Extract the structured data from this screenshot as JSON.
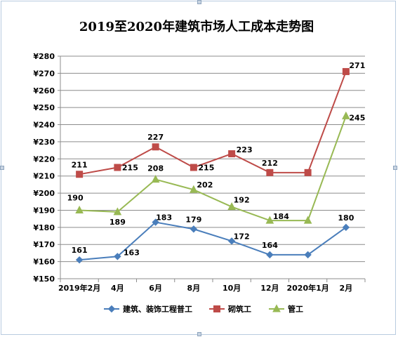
{
  "chart_data": {
    "type": "line",
    "title": "2019至2020年建筑市场人工成本走势图",
    "categories": [
      "2019年2月",
      "4月",
      "6月",
      "8月",
      "10月",
      "12月",
      "2020年1月",
      "2月"
    ],
    "yticks": [
      "¥150",
      "¥160",
      "¥170",
      "¥180",
      "¥190",
      "¥200",
      "¥210",
      "¥220",
      "¥230",
      "¥240",
      "¥250",
      "¥260",
      "¥270",
      "¥280"
    ],
    "ylim": [
      150,
      280
    ],
    "grid": true,
    "legend_position": "bottom",
    "series": [
      {
        "name": "建筑、装饰工程普工",
        "color": "#4a7ebb",
        "marker": "diamond",
        "values": [
          161,
          163,
          183,
          179,
          172,
          164,
          164,
          180
        ],
        "labels": [
          "161",
          "163",
          "183",
          "179",
          "172",
          "164",
          "",
          "180"
        ]
      },
      {
        "name": "砌筑工",
        "color": "#be4b48",
        "marker": "square",
        "values": [
          211,
          215,
          227,
          215,
          223,
          212,
          212,
          271
        ],
        "labels": [
          "211",
          "215",
          "227",
          "215",
          "223",
          "212",
          "",
          "271"
        ]
      },
      {
        "name": "管工",
        "color": "#98b954",
        "marker": "triangle",
        "values": [
          190,
          189,
          208,
          202,
          192,
          184,
          184,
          245
        ],
        "labels": [
          "190",
          "189",
          "208",
          "202",
          "192",
          "184",
          "",
          "245"
        ]
      }
    ]
  }
}
